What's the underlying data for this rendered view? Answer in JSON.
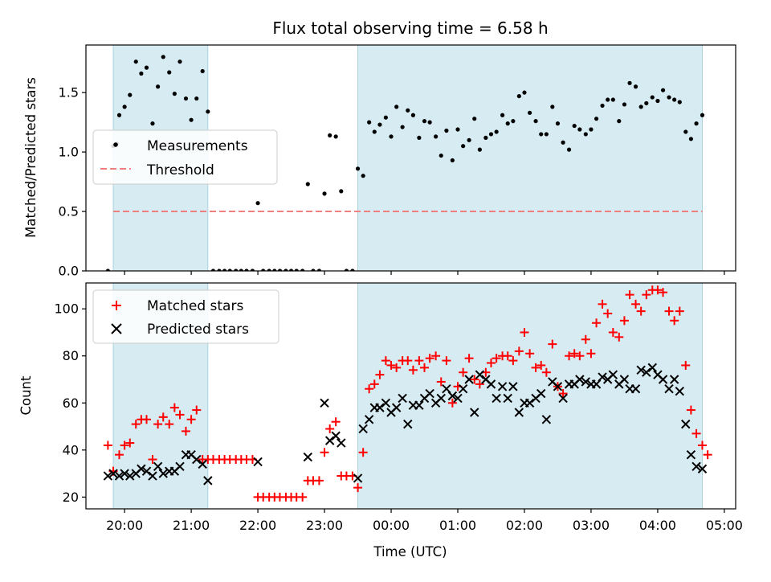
{
  "chart_data": [
    {
      "type": "scatter",
      "title": "Flux total observing time = 6.58 h",
      "ylabel": "Matched/Predicted stars",
      "ylim": [
        0,
        1.9
      ],
      "yticks": [
        0.0,
        0.5,
        1.0,
        1.5
      ],
      "ytick_labels": [
        "0.0",
        "0.5",
        "1.0",
        "1.5"
      ],
      "shaded_ranges_hours": [
        [
          19.83,
          21.25
        ],
        [
          23.5,
          28.67
        ]
      ],
      "threshold": {
        "name": "Threshold",
        "value": 0.5,
        "x_range": [
          19.83,
          28.67
        ],
        "color": "#f08080"
      },
      "legend_position": "center-left",
      "series": [
        {
          "name": "Measurements",
          "color": "#000000",
          "x": [
            19.75,
            19.83,
            19.88,
            19.92,
            20.0,
            20.08,
            20.17,
            20.25,
            20.33,
            20.42,
            20.5,
            20.58,
            20.67,
            20.75,
            20.83,
            20.92,
            21.0,
            21.08,
            21.17,
            21.25,
            21.33,
            21.42,
            21.5,
            21.58,
            21.67,
            21.75,
            21.83,
            21.92,
            22.0,
            22.08,
            22.17,
            22.25,
            22.33,
            22.42,
            22.5,
            22.58,
            22.67,
            22.75,
            22.83,
            22.92,
            23.0,
            23.08,
            23.17,
            23.25,
            23.33,
            23.42,
            23.5,
            23.58,
            23.67,
            23.75,
            23.83,
            23.92,
            24.0,
            24.08,
            24.17,
            24.25,
            24.33,
            24.42,
            24.5,
            24.58,
            24.67,
            24.75,
            24.83,
            24.92,
            25.0,
            25.08,
            25.17,
            25.25,
            25.33,
            25.42,
            25.5,
            25.58,
            25.67,
            25.75,
            25.83,
            25.92,
            26.0,
            26.08,
            26.17,
            26.25,
            26.33,
            26.42,
            26.5,
            26.58,
            26.67,
            26.75,
            26.83,
            26.92,
            27.0,
            27.08,
            27.17,
            27.25,
            27.33,
            27.42,
            27.5,
            27.58,
            27.67,
            27.75,
            27.83,
            27.92,
            28.0,
            28.08,
            28.17,
            28.25,
            28.33,
            28.42,
            28.5,
            28.58,
            28.67
          ],
          "y": [
            0.0,
            1.05,
            1.07,
            1.31,
            1.38,
            1.48,
            1.76,
            1.66,
            1.71,
            1.24,
            1.55,
            1.8,
            1.67,
            1.49,
            1.76,
            1.45,
            1.27,
            1.45,
            1.68,
            1.34,
            0.0,
            0.0,
            0.0,
            0.0,
            0.0,
            0.0,
            0.0,
            0.0,
            0.57,
            0.0,
            0.0,
            0.0,
            0.0,
            0.0,
            0.0,
            0.0,
            0.0,
            0.73,
            0.0,
            0.0,
            0.65,
            1.14,
            1.13,
            0.67,
            0.0,
            0.0,
            0.86,
            0.8,
            1.25,
            1.17,
            1.23,
            1.29,
            1.13,
            1.38,
            1.21,
            1.35,
            1.31,
            1.12,
            1.26,
            1.25,
            1.13,
            0.97,
            1.18,
            0.93,
            1.19,
            1.05,
            1.1,
            1.28,
            1.02,
            1.12,
            1.15,
            1.17,
            1.31,
            1.24,
            1.26,
            1.47,
            1.5,
            1.33,
            1.26,
            1.15,
            1.15,
            1.38,
            1.24,
            1.08,
            1.02,
            1.22,
            1.19,
            1.15,
            1.19,
            1.28,
            1.39,
            1.44,
            1.44,
            1.26,
            1.4,
            1.58,
            1.55,
            1.38,
            1.41,
            1.46,
            1.43,
            1.52,
            1.46,
            1.44,
            1.42,
            1.17,
            1.11,
            1.24,
            1.31
          ]
        }
      ]
    },
    {
      "type": "scatter",
      "xlabel": "Time (UTC)",
      "ylabel": "Count",
      "ylim": [
        15,
        111
      ],
      "yticks": [
        20,
        40,
        60,
        80,
        100
      ],
      "ytick_labels": [
        "20",
        "40",
        "60",
        "80",
        "100"
      ],
      "xlim_hours": [
        19.42,
        29.17
      ],
      "xticks_hours": [
        20,
        21,
        22,
        23,
        24,
        25,
        26,
        27,
        28,
        29
      ],
      "xtick_labels": [
        "20:00",
        "21:00",
        "22:00",
        "23:00",
        "00:00",
        "01:00",
        "02:00",
        "03:00",
        "04:00",
        "05:00"
      ],
      "shaded_ranges_hours": [
        [
          19.83,
          21.25
        ],
        [
          23.5,
          28.67
        ]
      ],
      "legend_position": "top-left",
      "series": [
        {
          "name": "Matched stars",
          "marker": "plus",
          "color": "#ff0000",
          "x": [
            19.75,
            19.83,
            19.92,
            20.0,
            20.08,
            20.17,
            20.25,
            20.33,
            20.42,
            20.5,
            20.58,
            20.67,
            20.75,
            20.83,
            20.92,
            21.0,
            21.08,
            21.17,
            21.25,
            21.33,
            21.42,
            21.5,
            21.58,
            21.67,
            21.75,
            21.83,
            21.92,
            22.0,
            22.08,
            22.17,
            22.25,
            22.33,
            22.42,
            22.5,
            22.58,
            22.67,
            22.75,
            22.83,
            22.92,
            23.0,
            23.08,
            23.17,
            23.25,
            23.33,
            23.42,
            23.5,
            23.58,
            23.67,
            23.75,
            23.83,
            23.92,
            24.0,
            24.08,
            24.17,
            24.25,
            24.33,
            24.42,
            24.5,
            24.58,
            24.67,
            24.75,
            24.83,
            24.92,
            25.0,
            25.08,
            25.17,
            25.25,
            25.33,
            25.42,
            25.5,
            25.58,
            25.67,
            25.75,
            25.83,
            25.92,
            26.0,
            26.08,
            26.17,
            26.25,
            26.33,
            26.42,
            26.5,
            26.58,
            26.67,
            26.75,
            26.83,
            26.92,
            27.0,
            27.08,
            27.17,
            27.25,
            27.33,
            27.42,
            27.5,
            27.58,
            27.67,
            27.75,
            27.83,
            27.92,
            28.0,
            28.08,
            28.17,
            28.25,
            28.33,
            28.42,
            28.5,
            28.58,
            28.67,
            28.75
          ],
          "y": [
            42,
            31,
            38,
            42,
            43,
            51,
            53,
            53,
            36,
            51,
            54,
            51,
            58,
            55,
            48,
            53,
            57,
            36,
            36,
            36,
            36,
            36,
            36,
            36,
            36,
            36,
            36,
            20,
            20,
            20,
            20,
            20,
            20,
            20,
            20,
            20,
            27,
            27,
            27,
            39,
            49,
            52,
            29,
            29,
            29,
            24,
            39,
            66,
            68,
            72,
            78,
            76,
            75,
            78,
            78,
            74,
            78,
            75,
            79,
            80,
            69,
            78,
            60,
            67,
            73,
            79,
            70,
            68,
            73,
            77,
            79,
            80,
            80,
            78,
            82,
            90,
            81,
            75,
            76,
            73,
            85,
            67,
            64,
            80,
            81,
            80,
            87,
            81,
            94,
            102,
            98,
            90,
            88,
            95,
            106,
            102,
            99,
            106,
            108,
            108,
            107,
            99,
            95,
            99,
            76,
            57,
            47,
            42,
            38
          ]
        },
        {
          "name": "Predicted stars",
          "marker": "x",
          "color": "#000000",
          "x": [
            19.75,
            19.83,
            19.92,
            20.0,
            20.08,
            20.17,
            20.25,
            20.33,
            20.42,
            20.5,
            20.58,
            20.67,
            20.75,
            20.83,
            20.92,
            21.0,
            21.08,
            21.17,
            21.25,
            22.0,
            22.75,
            23.0,
            23.08,
            23.17,
            23.25,
            23.5,
            23.58,
            23.67,
            23.75,
            23.83,
            23.92,
            24.0,
            24.08,
            24.17,
            24.25,
            24.33,
            24.42,
            24.5,
            24.58,
            24.67,
            24.75,
            24.83,
            24.92,
            25.0,
            25.08,
            25.17,
            25.25,
            25.33,
            25.42,
            25.5,
            25.58,
            25.67,
            25.75,
            25.83,
            25.92,
            26.0,
            26.08,
            26.17,
            26.25,
            26.33,
            26.42,
            26.5,
            26.58,
            26.67,
            26.75,
            26.83,
            26.92,
            27.0,
            27.08,
            27.17,
            27.25,
            27.33,
            27.42,
            27.5,
            27.58,
            27.67,
            27.75,
            27.83,
            27.92,
            28.0,
            28.08,
            28.17,
            28.25,
            28.33,
            28.42,
            28.5,
            28.58,
            28.67
          ],
          "y": [
            29,
            30,
            29,
            30,
            29,
            30,
            32,
            31,
            29,
            33,
            30,
            31,
            31,
            33,
            38,
            38,
            36,
            34,
            27,
            35,
            37,
            60,
            44,
            46,
            43,
            28,
            49,
            53,
            58,
            58,
            60,
            56,
            58,
            62,
            51,
            59,
            59,
            62,
            64,
            60,
            62,
            66,
            63,
            62,
            66,
            70,
            56,
            72,
            70,
            68,
            62,
            67,
            62,
            67,
            56,
            60,
            60,
            62,
            64,
            53,
            69,
            67,
            62,
            68,
            68,
            70,
            69,
            68,
            68,
            71,
            70,
            72,
            68,
            70,
            66,
            66,
            74,
            73,
            75,
            72,
            70,
            66,
            70,
            65,
            51,
            38,
            33,
            32
          ]
        }
      ]
    }
  ]
}
